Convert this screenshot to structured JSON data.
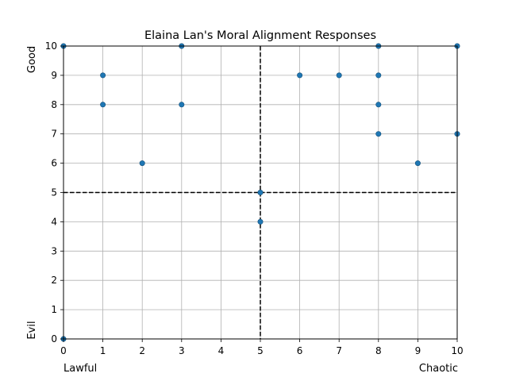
{
  "chart_data": {
    "type": "scatter",
    "title": "Elaina Lan's Moral Alignment Responses",
    "xlabel": "",
    "ylabel": "",
    "xlim": [
      0,
      10
    ],
    "ylim": [
      0,
      10
    ],
    "xticks": [
      "0",
      "1",
      "2",
      "3",
      "4",
      "5",
      "6",
      "7",
      "8",
      "9",
      "10"
    ],
    "yticks": [
      "0",
      "1",
      "2",
      "3",
      "4",
      "5",
      "6",
      "7",
      "8",
      "9",
      "10"
    ],
    "x_end_labels": {
      "left": "Lawful",
      "right": "Chaotic"
    },
    "y_end_labels": {
      "top": "Good",
      "bottom": "Evil"
    },
    "grid": true,
    "reference_lines": [
      {
        "axis": "x",
        "value": 5,
        "style": "dashed"
      },
      {
        "axis": "y",
        "value": 5,
        "style": "dashed"
      }
    ],
    "point_color": "#1f77b4",
    "points": [
      {
        "x": 0,
        "y": 10
      },
      {
        "x": 0,
        "y": 0
      },
      {
        "x": 1,
        "y": 9
      },
      {
        "x": 1,
        "y": 8
      },
      {
        "x": 2,
        "y": 6
      },
      {
        "x": 3,
        "y": 10
      },
      {
        "x": 3,
        "y": 8
      },
      {
        "x": 5,
        "y": 5
      },
      {
        "x": 5,
        "y": 4
      },
      {
        "x": 6,
        "y": 9
      },
      {
        "x": 7,
        "y": 9
      },
      {
        "x": 8,
        "y": 10
      },
      {
        "x": 8,
        "y": 9
      },
      {
        "x": 8,
        "y": 8
      },
      {
        "x": 8,
        "y": 7
      },
      {
        "x": 9,
        "y": 6
      },
      {
        "x": 10,
        "y": 10
      },
      {
        "x": 10,
        "y": 7
      }
    ]
  }
}
